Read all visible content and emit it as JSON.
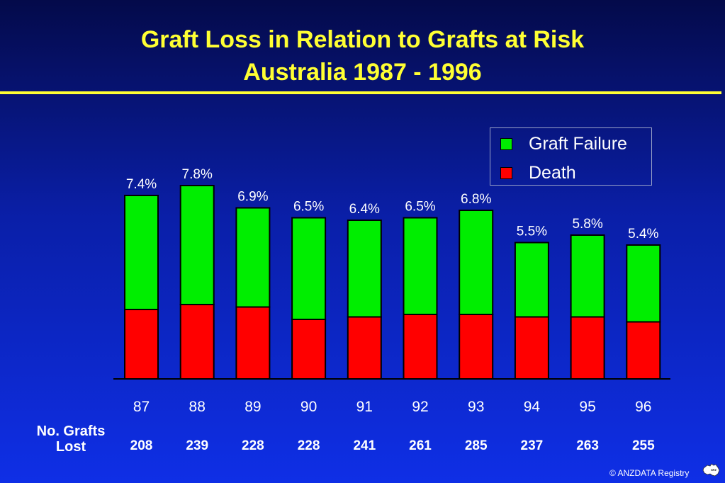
{
  "header": {
    "title_line1": "Graft Loss in Relation to Grafts at Risk",
    "title_line2": "Australia  1987 - 1996"
  },
  "legend": {
    "items": [
      {
        "label": "Graft Failure",
        "color": "#00ee00"
      },
      {
        "label": "Death",
        "color": "#ff0000"
      }
    ]
  },
  "table": {
    "row_label": "No. Grafts Lost"
  },
  "footer": {
    "copyright": "© ANZDATA Registry"
  },
  "chart_data": {
    "type": "bar",
    "stacked": true,
    "categories": [
      "87",
      "88",
      "89",
      "90",
      "91",
      "92",
      "93",
      "94",
      "95",
      "96"
    ],
    "series": [
      {
        "name": "Death",
        "color": "#ff0000",
        "values": [
          2.8,
          3.0,
          2.9,
          2.4,
          2.5,
          2.6,
          2.6,
          2.5,
          2.5,
          2.3
        ]
      },
      {
        "name": "Graft Failure",
        "color": "#00ee00",
        "values": [
          4.6,
          4.8,
          4.0,
          4.1,
          3.9,
          3.9,
          4.2,
          3.0,
          3.3,
          3.1
        ]
      }
    ],
    "total_labels": [
      "7.4%",
      "7.8%",
      "6.9%",
      "6.5%",
      "6.4%",
      "6.5%",
      "6.8%",
      "5.5%",
      "5.8%",
      "5.4%"
    ],
    "grafts_lost": [
      "208",
      "239",
      "228",
      "228",
      "241",
      "261",
      "285",
      "237",
      "263",
      "255"
    ],
    "ylim": [
      0,
      8
    ],
    "grid": false,
    "legend_position": "top-right"
  }
}
